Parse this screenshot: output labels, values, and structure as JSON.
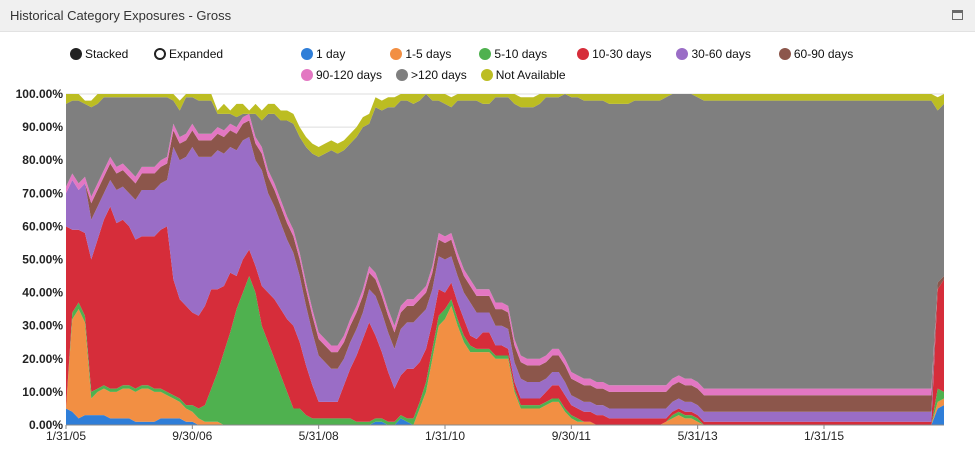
{
  "panel": {
    "title": "Historical Category Exposures - Gross"
  },
  "modes": [
    {
      "label": "Stacked",
      "selected": true
    },
    {
      "label": "Expanded",
      "selected": false
    }
  ],
  "chart_data": {
    "type": "area",
    "stacked": true,
    "xlabel": "",
    "ylabel": "",
    "ylim": [
      0,
      100
    ],
    "y_tick_labels": [
      "0.00%",
      "10.00%",
      "20.00%",
      "30.00%",
      "40.00%",
      "50.00%",
      "60.00%",
      "70.00%",
      "80.00%",
      "90.00%",
      "100.00%"
    ],
    "x_tick_labels": [
      "1/31/05",
      "9/30/06",
      "5/31/08",
      "1/31/10",
      "9/30/11",
      "5/31/13",
      "1/31/15"
    ],
    "x_start": "1/31/05",
    "x_end": "11/30/15",
    "period": "monthly",
    "grid": true,
    "legend_position": "top",
    "series": [
      {
        "name": "1 day",
        "color": "#2f7ed8",
        "values": [
          5,
          4,
          2,
          3,
          3,
          3,
          3,
          2,
          2,
          2,
          2,
          1,
          1,
          1,
          1,
          2,
          2,
          2,
          2,
          1,
          1,
          0,
          0,
          0,
          0,
          0,
          0,
          0,
          0,
          0,
          0,
          0,
          0,
          0,
          0,
          0,
          0,
          0,
          0,
          0,
          0,
          0,
          0,
          0,
          0,
          0,
          0,
          0,
          0,
          1,
          1,
          0,
          0,
          2,
          1,
          0,
          0,
          0,
          0,
          0,
          0,
          0,
          0,
          0,
          0,
          0,
          0,
          0,
          0,
          0,
          0,
          0,
          0,
          0,
          0,
          0,
          0,
          0,
          0,
          0,
          0,
          0,
          0,
          0,
          0,
          0,
          0,
          0,
          0,
          0,
          0,
          0,
          0,
          0,
          0,
          0,
          0,
          0,
          0,
          0,
          0,
          0,
          0,
          0,
          0,
          0,
          0,
          0,
          0,
          0,
          0,
          0,
          0,
          0,
          0,
          0,
          0,
          0,
          0,
          0,
          0,
          0,
          0,
          0,
          0,
          0,
          0,
          0,
          0,
          0,
          0,
          0,
          0,
          0,
          0,
          0,
          0,
          0,
          5,
          6
        ]
      },
      {
        "name": "1-5 days",
        "color": "#f28f43",
        "values": [
          0,
          28,
          33,
          28,
          5,
          7,
          8,
          8,
          8,
          9,
          9,
          9,
          10,
          10,
          9,
          8,
          7,
          6,
          5,
          4,
          3,
          2,
          1,
          1,
          1,
          0,
          0,
          0,
          0,
          0,
          0,
          0,
          0,
          0,
          0,
          0,
          0,
          0,
          0,
          0,
          0,
          0,
          0,
          0,
          0,
          0,
          0,
          0,
          0,
          0,
          0,
          0,
          0,
          0,
          0,
          0,
          5,
          10,
          20,
          30,
          32,
          36,
          30,
          25,
          22,
          22,
          22,
          22,
          20,
          20,
          20,
          10,
          5,
          5,
          5,
          5,
          6,
          7,
          7,
          4,
          2,
          1,
          1,
          1,
          0,
          0,
          0,
          0,
          0,
          0,
          0,
          0,
          0,
          0,
          0,
          1,
          2,
          3,
          2,
          2,
          1,
          0,
          0,
          0,
          0,
          0,
          0,
          0,
          0,
          0,
          0,
          0,
          0,
          0,
          0,
          0,
          0,
          0,
          0,
          0,
          0,
          0,
          0,
          0,
          0,
          0,
          0,
          0,
          0,
          0,
          0,
          0,
          0,
          0,
          0,
          0,
          0,
          0,
          2,
          2
        ]
      },
      {
        "name": "5-10 days",
        "color": "#4fb14f",
        "values": [
          0,
          2,
          2,
          2,
          2,
          1,
          1,
          1,
          1,
          1,
          1,
          1,
          1,
          1,
          1,
          1,
          1,
          1,
          1,
          1,
          2,
          3,
          5,
          10,
          15,
          22,
          28,
          35,
          40,
          45,
          40,
          30,
          25,
          20,
          15,
          10,
          5,
          5,
          3,
          2,
          2,
          2,
          2,
          2,
          2,
          2,
          1,
          1,
          1,
          1,
          1,
          1,
          1,
          1,
          1,
          2,
          2,
          3,
          3,
          3,
          3,
          2,
          2,
          2,
          2,
          1,
          1,
          1,
          1,
          1,
          1,
          1,
          1,
          1,
          1,
          1,
          1,
          1,
          1,
          1,
          1,
          1,
          0,
          0,
          0,
          0,
          0,
          0,
          0,
          0,
          0,
          0,
          0,
          0,
          0,
          0,
          1,
          1,
          1,
          1,
          1,
          0,
          0,
          0,
          0,
          0,
          0,
          0,
          0,
          0,
          0,
          0,
          0,
          0,
          0,
          0,
          0,
          0,
          0,
          0,
          0,
          0,
          0,
          0,
          0,
          0,
          0,
          0,
          0,
          0,
          0,
          0,
          0,
          0,
          0,
          0,
          0,
          0,
          4,
          2
        ]
      },
      {
        "name": "10-30 days",
        "color": "#d62d3a",
        "values": [
          55,
          25,
          22,
          25,
          40,
          45,
          50,
          55,
          50,
          50,
          48,
          45,
          45,
          45,
          46,
          48,
          50,
          35,
          30,
          30,
          28,
          28,
          30,
          30,
          25,
          20,
          18,
          10,
          10,
          8,
          8,
          12,
          15,
          18,
          20,
          22,
          25,
          20,
          15,
          10,
          5,
          5,
          5,
          5,
          10,
          15,
          20,
          25,
          30,
          25,
          20,
          15,
          10,
          12,
          15,
          15,
          12,
          10,
          8,
          8,
          5,
          5,
          5,
          5,
          3,
          3,
          5,
          5,
          3,
          3,
          2,
          2,
          2,
          2,
          2,
          2,
          3,
          4,
          4,
          4,
          3,
          3,
          3,
          3,
          3,
          3,
          2,
          2,
          2,
          2,
          2,
          2,
          2,
          2,
          2,
          1,
          1,
          1,
          1,
          1,
          1,
          1,
          1,
          1,
          1,
          1,
          1,
          1,
          1,
          1,
          1,
          1,
          1,
          1,
          1,
          1,
          1,
          1,
          1,
          1,
          1,
          1,
          1,
          1,
          1,
          1,
          1,
          1,
          1,
          1,
          1,
          1,
          1,
          1,
          1,
          1,
          1,
          1,
          30,
          34
        ]
      },
      {
        "name": "30-60 days",
        "color": "#9a6dc6",
        "values": [
          10,
          15,
          12,
          15,
          12,
          10,
          8,
          8,
          10,
          10,
          10,
          12,
          14,
          14,
          14,
          14,
          14,
          40,
          42,
          45,
          50,
          48,
          45,
          40,
          42,
          40,
          38,
          38,
          36,
          34,
          32,
          35,
          30,
          28,
          26,
          24,
          22,
          20,
          18,
          16,
          14,
          12,
          10,
          10,
          8,
          8,
          8,
          8,
          10,
          12,
          12,
          12,
          12,
          14,
          14,
          14,
          14,
          12,
          10,
          10,
          10,
          8,
          8,
          8,
          10,
          8,
          6,
          6,
          6,
          6,
          6,
          6,
          6,
          5,
          5,
          5,
          4,
          4,
          4,
          4,
          3,
          3,
          3,
          3,
          3,
          3,
          3,
          3,
          3,
          3,
          3,
          3,
          3,
          3,
          3,
          3,
          3,
          3,
          3,
          3,
          3,
          3,
          3,
          3,
          3,
          3,
          3,
          3,
          3,
          3,
          3,
          3,
          3,
          3,
          3,
          3,
          3,
          3,
          3,
          3,
          3,
          3,
          3,
          3,
          3,
          3,
          3,
          3,
          3,
          3,
          3,
          3,
          3,
          3,
          3,
          3,
          3,
          3,
          0,
          0
        ]
      },
      {
        "name": "60-90 days",
        "color": "#8c564b",
        "values": [
          0,
          0,
          0,
          0,
          5,
          5,
          5,
          5,
          5,
          5,
          5,
          5,
          5,
          5,
          5,
          5,
          5,
          5,
          5,
          5,
          5,
          5,
          5,
          5,
          5,
          5,
          5,
          5,
          5,
          5,
          5,
          5,
          5,
          5,
          5,
          5,
          5,
          5,
          5,
          5,
          5,
          5,
          5,
          5,
          5,
          5,
          5,
          5,
          5,
          5,
          5,
          5,
          5,
          5,
          5,
          5,
          5,
          5,
          5,
          5,
          5,
          5,
          5,
          5,
          5,
          5,
          5,
          5,
          5,
          5,
          5,
          5,
          5,
          5,
          5,
          5,
          5,
          5,
          5,
          5,
          5,
          5,
          5,
          5,
          5,
          5,
          5,
          5,
          5,
          5,
          5,
          5,
          5,
          5,
          5,
          5,
          5,
          5,
          5,
          5,
          5,
          5,
          5,
          5,
          5,
          5,
          5,
          5,
          5,
          5,
          5,
          5,
          5,
          5,
          5,
          5,
          5,
          5,
          5,
          5,
          5,
          5,
          5,
          5,
          5,
          5,
          5,
          5,
          5,
          5,
          5,
          5,
          5,
          5,
          5,
          5,
          5,
          5,
          2,
          1
        ]
      },
      {
        "name": "90-120 days",
        "color": "#e377c2",
        "values": [
          2,
          2,
          2,
          2,
          2,
          2,
          2,
          2,
          2,
          2,
          2,
          2,
          2,
          2,
          2,
          2,
          2,
          2,
          2,
          2,
          2,
          2,
          2,
          2,
          2,
          2,
          2,
          2,
          2,
          2,
          2,
          2,
          2,
          2,
          2,
          2,
          2,
          2,
          2,
          2,
          2,
          2,
          2,
          2,
          2,
          2,
          2,
          2,
          2,
          2,
          2,
          2,
          2,
          2,
          2,
          2,
          2,
          2,
          2,
          2,
          2,
          2,
          2,
          2,
          2,
          2,
          2,
          2,
          2,
          2,
          2,
          2,
          2,
          2,
          2,
          2,
          2,
          2,
          2,
          2,
          2,
          2,
          2,
          2,
          2,
          2,
          2,
          2,
          2,
          2,
          2,
          2,
          2,
          2,
          2,
          2,
          2,
          2,
          2,
          2,
          2,
          2,
          2,
          2,
          2,
          2,
          2,
          2,
          2,
          2,
          2,
          2,
          2,
          2,
          2,
          2,
          2,
          2,
          2,
          2,
          2,
          2,
          2,
          2,
          2,
          2,
          2,
          2,
          2,
          2,
          2,
          2,
          2,
          2,
          2,
          2,
          2,
          2,
          0,
          0
        ]
      },
      {
        "name": ">120 days",
        "color": "#7f7f7f",
        "values": [
          25,
          22,
          25,
          22,
          27,
          24,
          22,
          18,
          21,
          20,
          22,
          24,
          21,
          21,
          21,
          19,
          18,
          7,
          8,
          11,
          8,
          10,
          10,
          10,
          4,
          5,
          3,
          3,
          1,
          0,
          7,
          8,
          17,
          21,
          24,
          29,
          32,
          35,
          41,
          47,
          53,
          56,
          59,
          58,
          56,
          53,
          51,
          49,
          43,
          50,
          54,
          61,
          66,
          62,
          60,
          59,
          58,
          58,
          50,
          40,
          40,
          38,
          46,
          51,
          54,
          57,
          56,
          56,
          62,
          62,
          63,
          71,
          75,
          76,
          76,
          77,
          78,
          76,
          76,
          80,
          83,
          84,
          84,
          84,
          85,
          85,
          85,
          85,
          85,
          85,
          86,
          86,
          86,
          86,
          86,
          87,
          86,
          85,
          86,
          86,
          86,
          87,
          87,
          87,
          87,
          87,
          87,
          87,
          87,
          87,
          87,
          87,
          87,
          87,
          87,
          87,
          87,
          87,
          87,
          87,
          87,
          87,
          87,
          87,
          87,
          87,
          87,
          87,
          87,
          87,
          87,
          87,
          87,
          87,
          87,
          87,
          87,
          87,
          52,
          52
        ]
      },
      {
        "name": "Not Available",
        "color": "#bcbd22",
        "values": [
          3,
          2,
          2,
          1,
          2,
          3,
          1,
          1,
          1,
          1,
          1,
          1,
          1,
          1,
          1,
          1,
          1,
          2,
          3,
          1,
          1,
          3,
          2,
          2,
          1,
          3,
          1,
          4,
          3,
          1,
          3,
          3,
          3,
          3,
          3,
          3,
          3,
          3,
          3,
          3,
          3,
          3,
          3,
          3,
          3,
          3,
          3,
          3,
          3,
          3,
          3,
          3,
          3,
          3,
          3,
          3,
          3,
          3,
          3,
          3,
          3,
          3,
          3,
          3,
          3,
          3,
          3,
          3,
          3,
          3,
          3,
          3,
          3,
          3,
          3,
          3,
          3,
          3,
          3,
          3,
          3,
          3,
          3,
          3,
          3,
          3,
          3,
          3,
          3,
          3,
          3,
          3,
          3,
          3,
          3,
          3,
          3,
          3,
          3,
          3,
          3,
          3,
          3,
          3,
          3,
          3,
          3,
          3,
          3,
          3,
          3,
          3,
          3,
          3,
          3,
          3,
          3,
          3,
          3,
          3,
          3,
          3,
          3,
          3,
          3,
          3,
          3,
          3,
          3,
          3,
          3,
          3,
          3,
          3,
          3,
          3,
          3,
          3,
          4,
          4
        ]
      }
    ]
  }
}
